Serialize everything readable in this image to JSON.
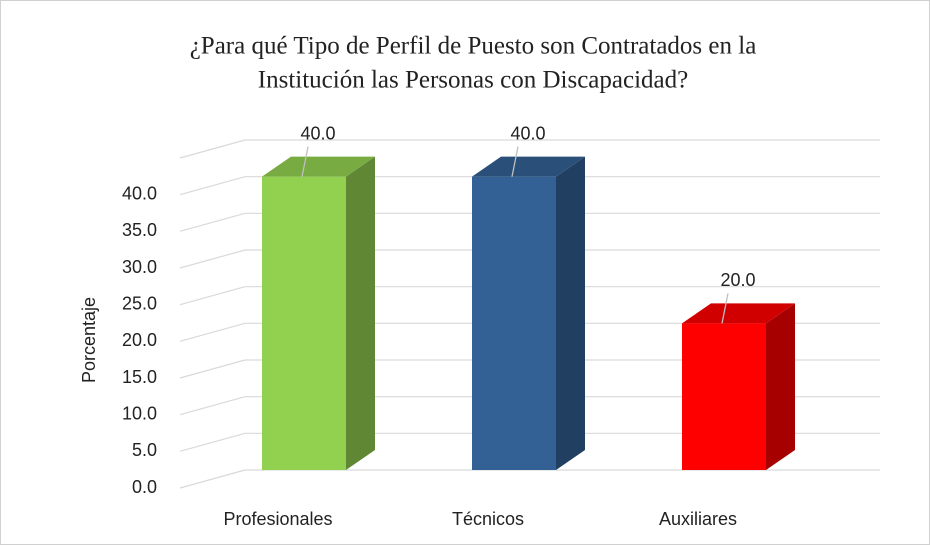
{
  "chart_data": {
    "type": "bar3d",
    "title": [
      "¿Para qué Tipo de Perfil de Puesto son Contratados en la",
      "Institución las Personas con Discapacidad?"
    ],
    "y_label": "Porcentaje",
    "categories": [
      "Profesionales",
      "Técnicos",
      "Auxiliares"
    ],
    "values": [
      40,
      40,
      20
    ],
    "value_labels": [
      "40.0",
      "40.0",
      "20.0"
    ],
    "colors": [
      "#92d050",
      "#336195",
      "#ff0000"
    ],
    "ylim": [
      0,
      45
    ],
    "yticks": [
      {
        "value": 0,
        "label": "0.0"
      },
      {
        "value": 5,
        "label": "5.0"
      },
      {
        "value": 10,
        "label": "10.0"
      },
      {
        "value": 15,
        "label": "15.0"
      },
      {
        "value": 20,
        "label": "20.0"
      },
      {
        "value": 25,
        "label": "25.0"
      },
      {
        "value": 30,
        "label": "30.0"
      },
      {
        "value": 35,
        "label": "35.0"
      },
      {
        "value": 40,
        "label": "40.0"
      }
    ],
    "grid": true
  }
}
